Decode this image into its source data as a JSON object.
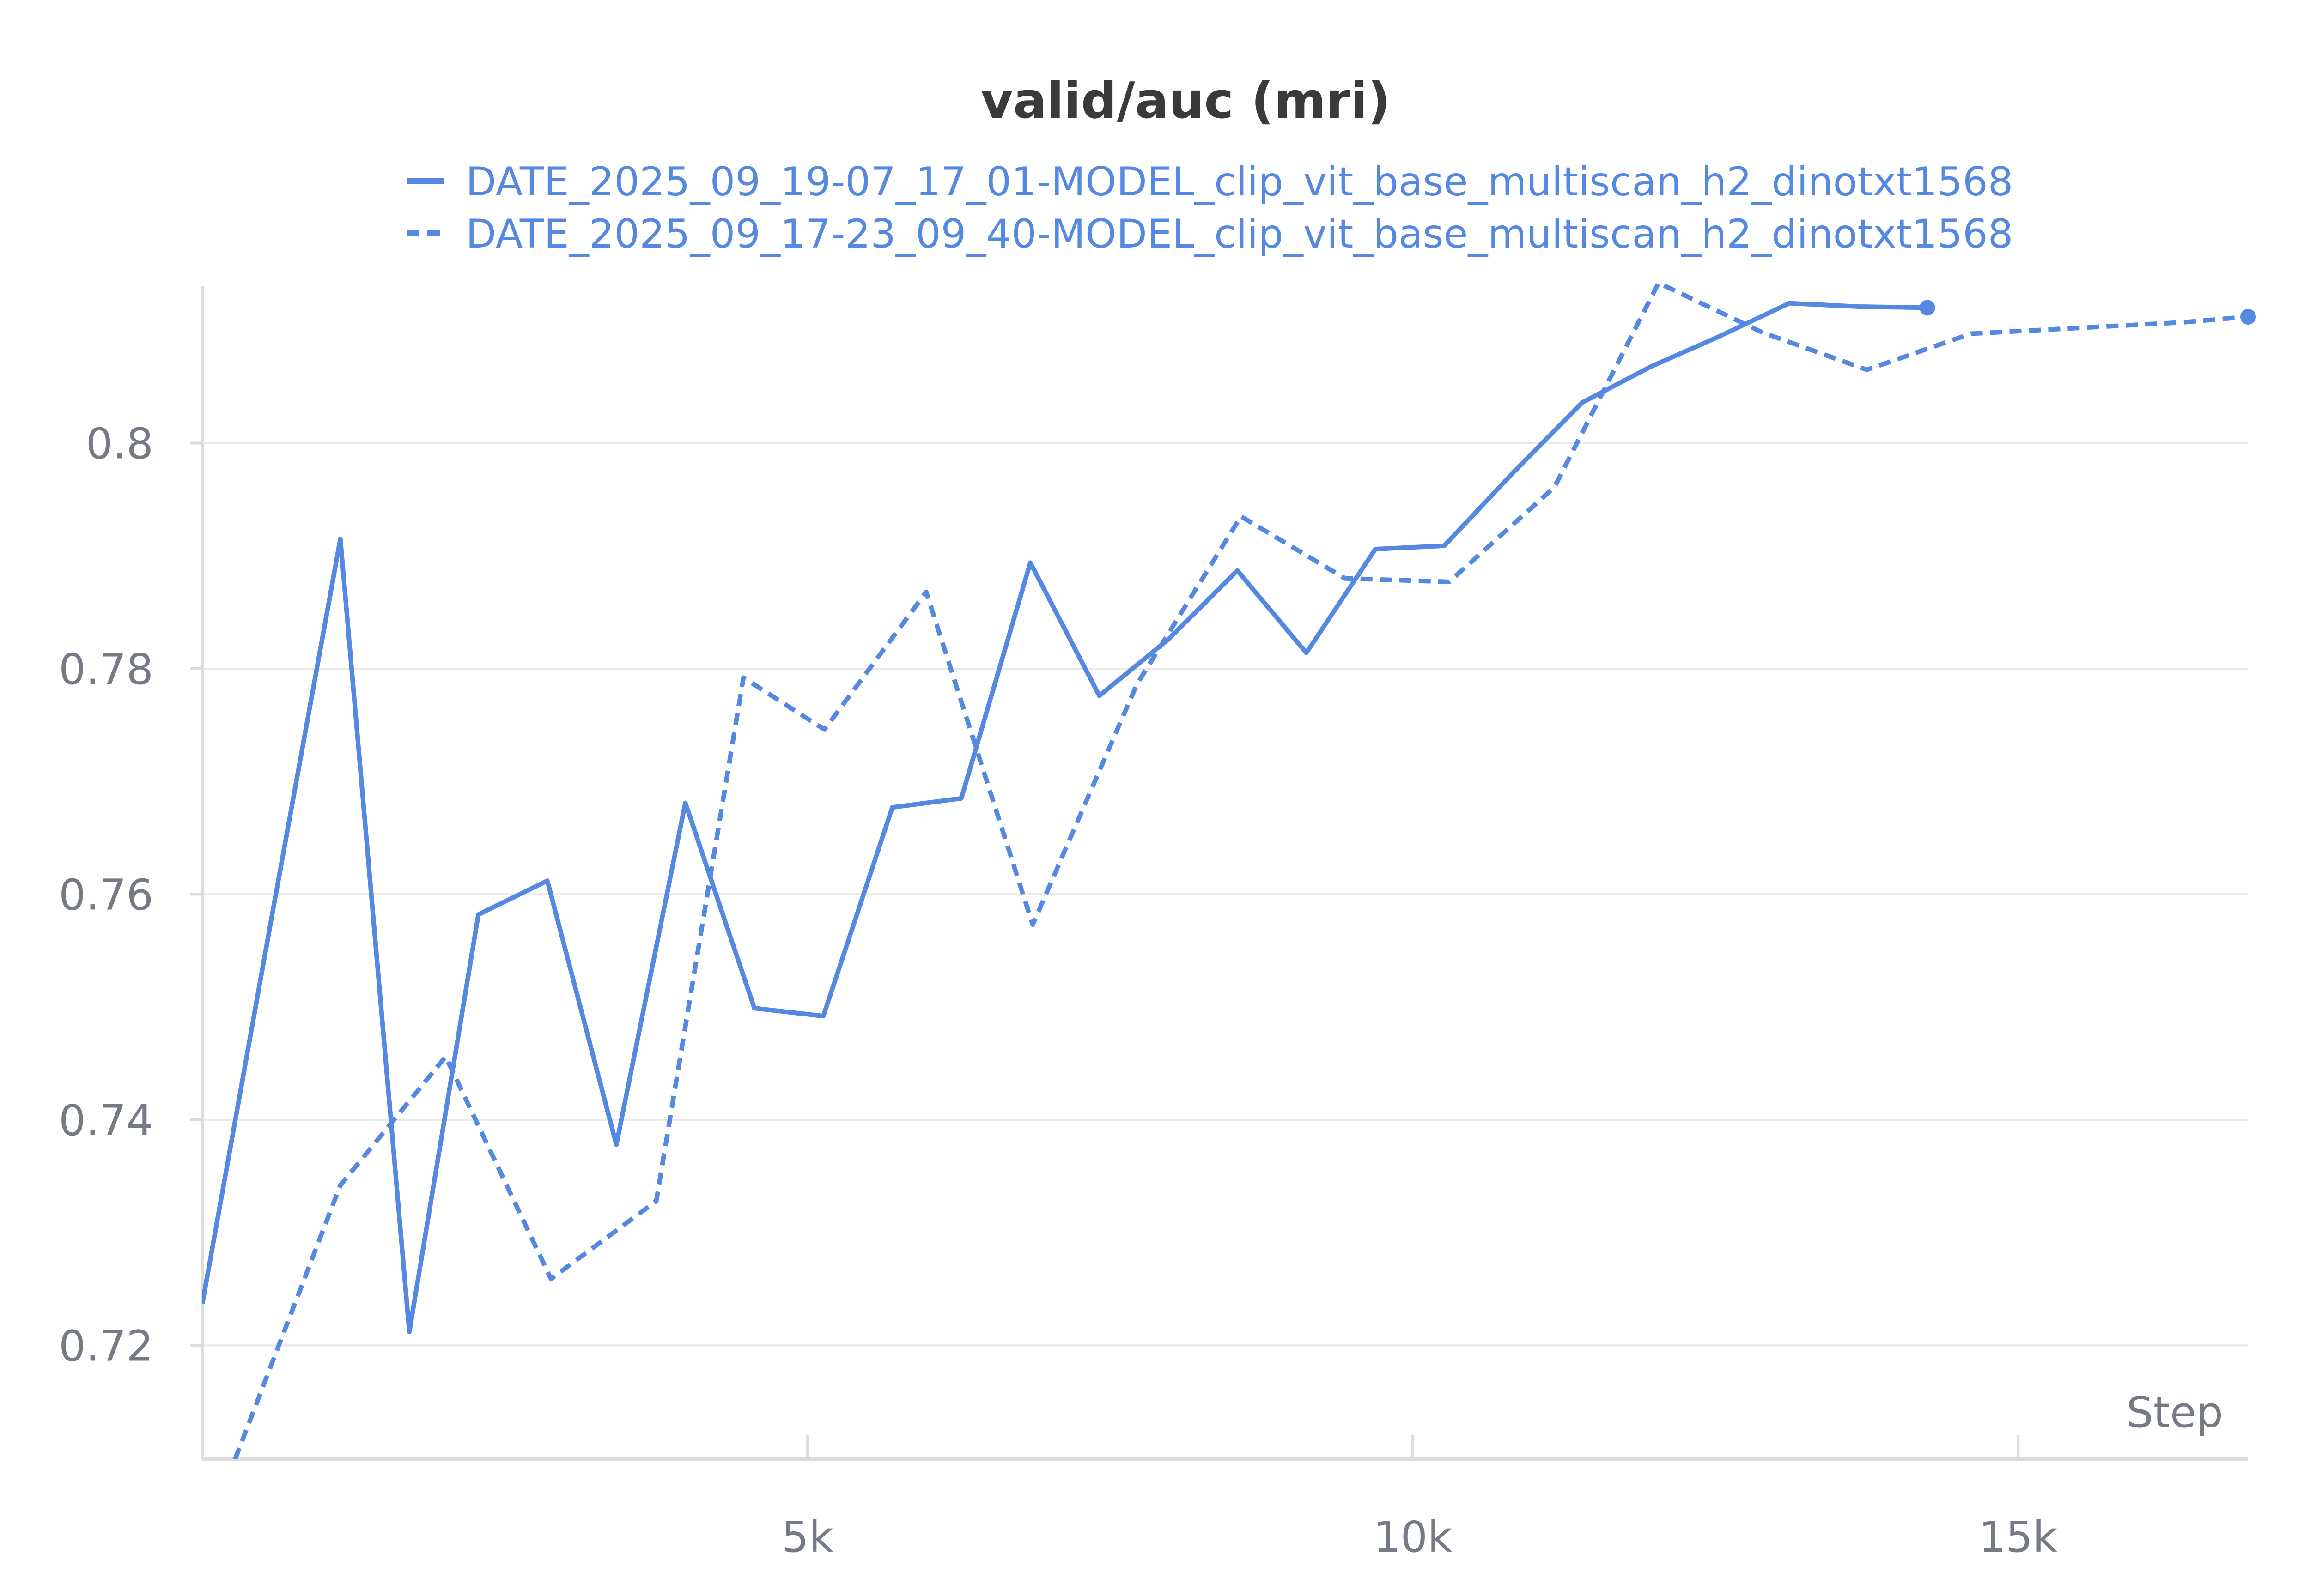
{
  "chart_data": {
    "type": "line",
    "title": "valid/auc (mri)",
    "xlabel": "Step",
    "ylabel": "",
    "xlim": [
      0,
      16900
    ],
    "ylim": [
      0.7099,
      0.8139
    ],
    "x_ticks": [
      5000,
      10000,
      15000
    ],
    "x_tick_labels": [
      "5k",
      "10k",
      "15k"
    ],
    "y_ticks": [
      0.72,
      0.74,
      0.76,
      0.78,
      0.8
    ],
    "y_tick_labels": [
      "0.72",
      "0.74",
      "0.76",
      "0.78",
      "0.8"
    ],
    "grid": true,
    "legend_position": "top",
    "colors": {
      "series": "#5588e0",
      "grid": "#e8e8e8",
      "axis": "#dcdcdc",
      "text": "#757a85",
      "title": "#3a3a3a"
    },
    "series": [
      {
        "name": "DATE_2025_09_19-07_17_01-MODEL_clip_vit_base_multiscan_h2_dinotxt1568",
        "style": "solid",
        "end_marker": true,
        "x": [
          0,
          570,
          1140,
          1710,
          2280,
          2850,
          3420,
          3990,
          4560,
          5130,
          5700,
          6270,
          6840,
          7410,
          7980,
          8550,
          9120,
          9690,
          10260,
          10830,
          11400,
          11970,
          12540,
          13110,
          13680,
          14250
        ],
        "values": [
          0.7237,
          0.7578,
          0.7915,
          0.7212,
          0.7582,
          0.7612,
          0.7378,
          0.7681,
          0.7499,
          0.7492,
          0.7677,
          0.7685,
          0.7894,
          0.7776,
          0.7826,
          0.7887,
          0.7814,
          0.7906,
          0.7909,
          0.7974,
          0.8036,
          0.8068,
          0.8095,
          0.8124,
          0.8121,
          0.812
        ]
      },
      {
        "name": "DATE_2025_09_17-23_09_40-MODEL_clip_vit_base_multiscan_h2_dinotxt1568",
        "style": "dashed",
        "end_marker": true,
        "x": [
          270,
          1140,
          2010,
          2880,
          3750,
          4470,
          5140,
          5980,
          6860,
          7720,
          8580,
          9440,
          10300,
          11170,
          12030,
          12890,
          13750,
          14610,
          15480,
          16350,
          16900
        ],
        "values": [
          0.7099,
          0.7342,
          0.7456,
          0.7259,
          0.7328,
          0.7792,
          0.7746,
          0.7868,
          0.7573,
          0.7786,
          0.7935,
          0.788,
          0.7877,
          0.7961,
          0.8142,
          0.8098,
          0.8065,
          0.8097,
          0.8102,
          0.8107,
          0.8112
        ]
      }
    ]
  }
}
